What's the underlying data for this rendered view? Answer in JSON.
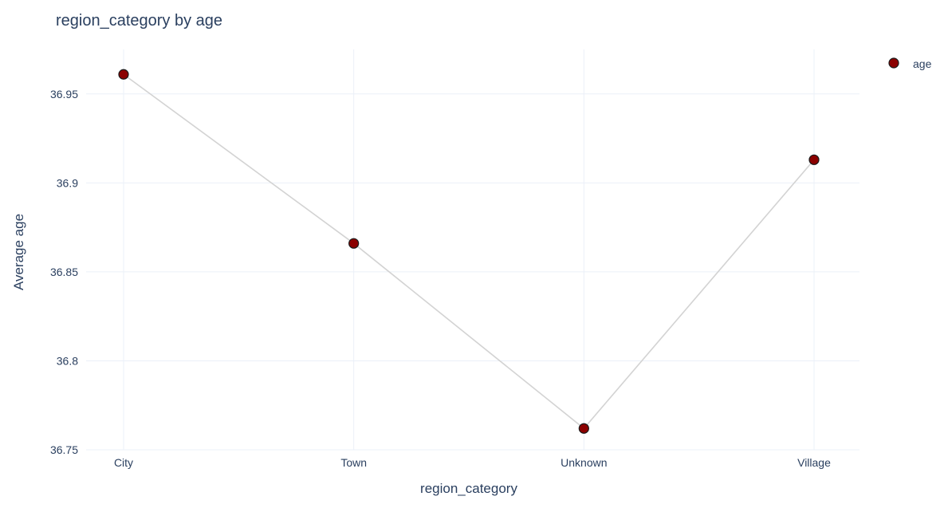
{
  "chart_data": {
    "type": "line",
    "title": "region_category by age",
    "xlabel": "region_category",
    "ylabel": "Average age",
    "categories": [
      "City",
      "Town",
      "Unknown",
      "Village"
    ],
    "series": [
      {
        "name": "age",
        "values": [
          36.961,
          36.866,
          36.762,
          36.913
        ]
      }
    ],
    "ylim": [
      36.75,
      36.975
    ],
    "yticks": [
      36.75,
      36.8,
      36.85,
      36.9,
      36.95
    ],
    "ytick_labels": [
      "36.75",
      "36.8",
      "36.85",
      "36.9",
      "36.95"
    ],
    "grid": true,
    "legend_position": "top-right",
    "colors": {
      "marker_fill": "#8b0000",
      "marker_stroke": "#1a1a1a",
      "line": "#d3d3d3",
      "grid": "#ebf0f8",
      "text": "#2a3f5f"
    }
  }
}
